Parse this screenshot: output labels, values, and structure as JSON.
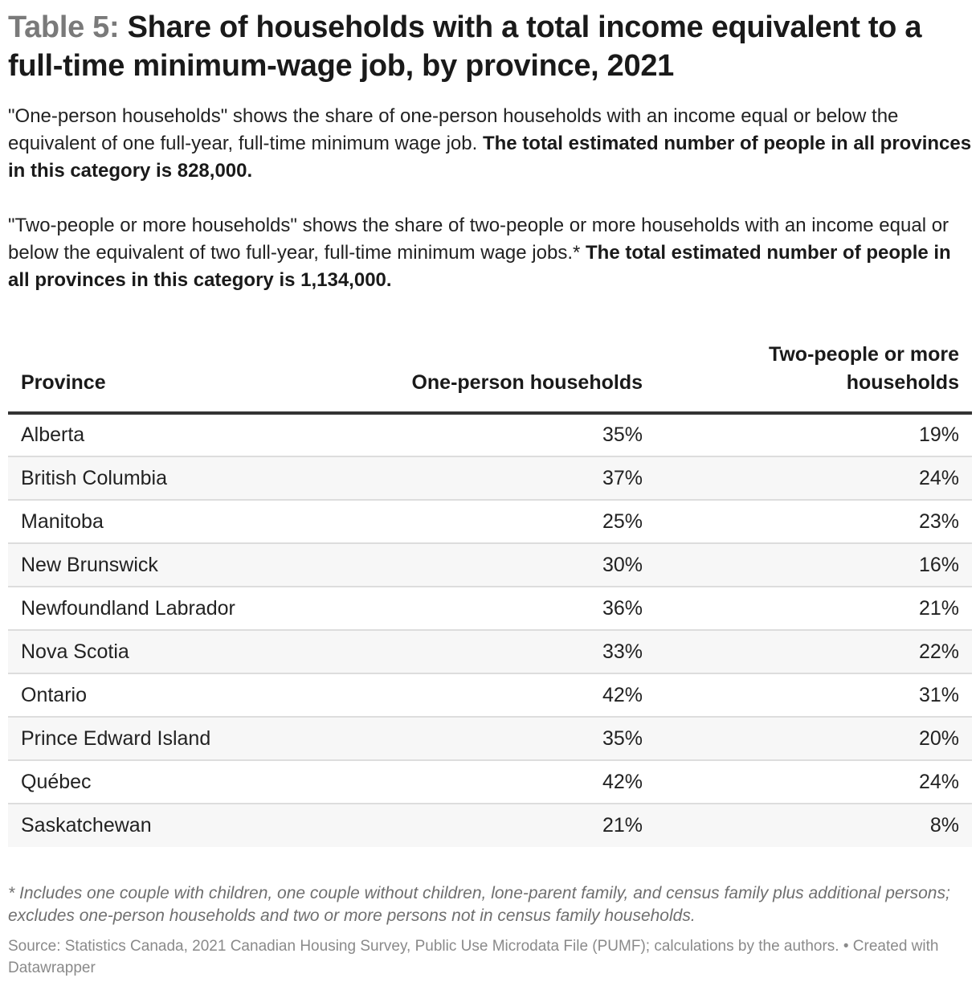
{
  "header": {
    "label": "Table 5:",
    "title": "Share of households with a total income equivalent to a full-time minimum-wage job, by province, 2021"
  },
  "description": {
    "p1_text": "\"One-person households\" shows the share of one-person households with an income equal or below the equivalent of one full-year, full-time minimum wage job.",
    "p1_bold": "The total estimated number of people in all provinces in this category is 828,000.",
    "p2_text": "\"Two-people or more households\" shows the share of two-people or more households with an income equal or below the equivalent of two full-year, full-time minimum wage jobs.*",
    "p2_bold": "The total estimated number of people in all provinces in this category is 1,134,000."
  },
  "chart_data": {
    "type": "table",
    "columns": [
      "Province",
      "One-person households",
      "Two-people or more households"
    ],
    "rows": [
      {
        "province": "Alberta",
        "one": "35%",
        "two": "19%"
      },
      {
        "province": "British Columbia",
        "one": "37%",
        "two": "24%"
      },
      {
        "province": "Manitoba",
        "one": "25%",
        "two": "23%"
      },
      {
        "province": "New Brunswick",
        "one": "30%",
        "two": "16%"
      },
      {
        "province": "Newfoundland Labrador",
        "one": "36%",
        "two": "21%"
      },
      {
        "province": "Nova Scotia",
        "one": "33%",
        "two": "22%"
      },
      {
        "province": "Ontario",
        "one": "42%",
        "two": "31%"
      },
      {
        "province": "Prince Edward Island",
        "one": "35%",
        "two": "20%"
      },
      {
        "province": "Québec",
        "one": "42%",
        "two": "24%"
      },
      {
        "province": "Saskatchewan",
        "one": "21%",
        "two": "8%"
      }
    ]
  },
  "footer": {
    "note": "* Includes one couple with children, one couple without children, lone-parent family, and census family plus additional persons; excludes one-person households and two or more persons not in census family households.",
    "source": "Source: Statistics Canada, 2021 Canadian Housing Survey, Public Use Microdata File (PUMF); calculations by the authors. • Created with Datawrapper"
  }
}
